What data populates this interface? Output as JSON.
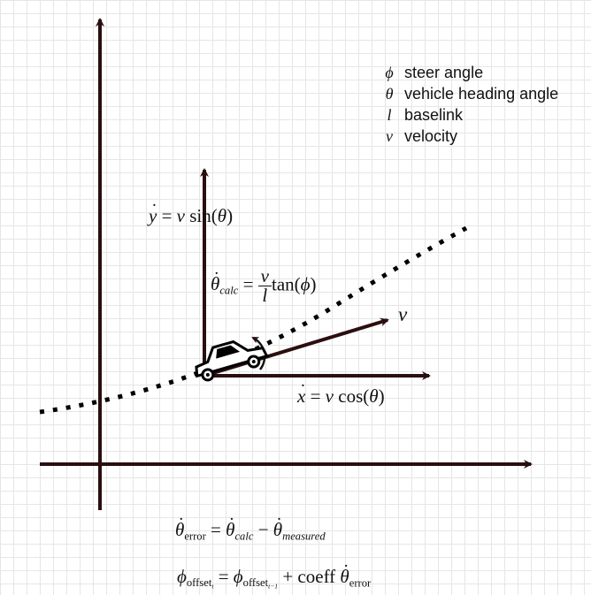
{
  "legend": [
    {
      "symbol": "ϕ",
      "label": "steer angle"
    },
    {
      "symbol": "θ",
      "label": "vehicle heading angle"
    },
    {
      "symbol": "l",
      "label": "baselink"
    },
    {
      "symbol": "v",
      "label": "velocity"
    }
  ],
  "equations": {
    "y_dot": {
      "lhs": "y",
      "rhs_v": "v",
      "func": "sin(",
      "arg": "θ",
      "close": ")"
    },
    "x_dot": {
      "lhs": "x",
      "rhs_v": "v",
      "func": "cos(",
      "arg": "θ",
      "close": ")"
    },
    "theta_calc": {
      "lhs": "θ",
      "sub": "calc",
      "num": "v",
      "den": "l",
      "func": "tan(",
      "arg": "ϕ",
      "close": ")"
    },
    "velocity_label": "v",
    "theta_error": {
      "lhs": "θ",
      "lhs_sub": "error",
      "a": "θ",
      "a_sub": "calc",
      "b": "θ",
      "b_sub": "measured"
    },
    "phi_offset": {
      "lhs": "ϕ",
      "lhs_sub": "offset",
      "lhs_t": "t",
      "a": "ϕ",
      "a_sub": "offset",
      "a_t": "t−1",
      "coeff": "coeff",
      "b": "θ",
      "b_sub": "error"
    }
  },
  "colors": {
    "axis": "#2a0f0f",
    "path": "#000000"
  }
}
